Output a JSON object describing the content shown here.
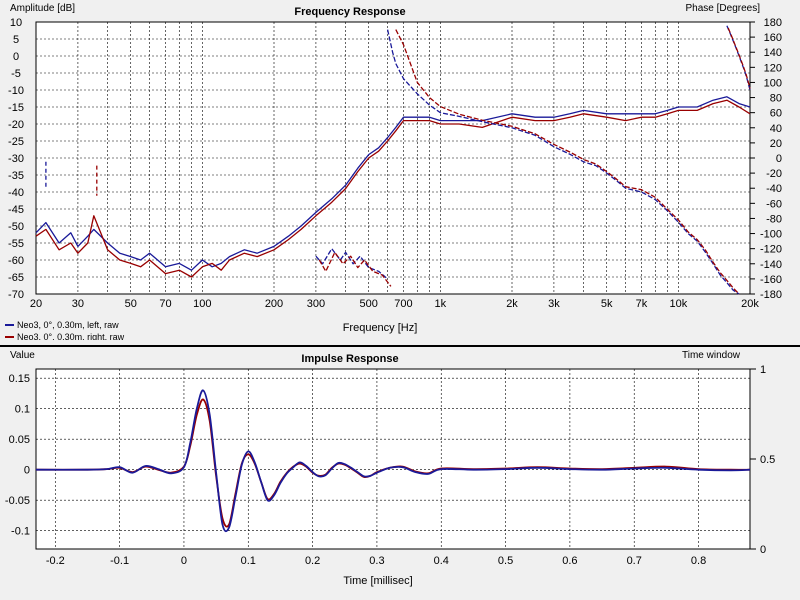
{
  "chart_data": [
    {
      "type": "line",
      "title": "Frequency Response",
      "xlabel": "Frequency [Hz]",
      "ylabel": "Amplitude [dB]",
      "y2label": "Phase [Degrees]",
      "xscale": "log",
      "xlim": [
        20,
        20000
      ],
      "ylim": [
        -70,
        10
      ],
      "y2lim": [
        -180,
        180
      ],
      "grid": true,
      "legend_position": "bottom-left",
      "xticks": [
        {
          "v": 20,
          "label": "20"
        },
        {
          "v": 30,
          "label": "30"
        },
        {
          "v": 50,
          "label": "50"
        },
        {
          "v": 70,
          "label": "70"
        },
        {
          "v": 100,
          "label": "100"
        },
        {
          "v": 200,
          "label": "200"
        },
        {
          "v": 300,
          "label": "300"
        },
        {
          "v": 500,
          "label": "500"
        },
        {
          "v": 700,
          "label": "700"
        },
        {
          "v": 1000,
          "label": "1k"
        },
        {
          "v": 2000,
          "label": "2k"
        },
        {
          "v": 3000,
          "label": "3k"
        },
        {
          "v": 5000,
          "label": "5k"
        },
        {
          "v": 7000,
          "label": "7k"
        },
        {
          "v": 10000,
          "label": "10k"
        },
        {
          "v": 20000,
          "label": "20k"
        }
      ],
      "yticks": [
        10,
        5,
        0,
        -5,
        -10,
        -15,
        -20,
        -25,
        -30,
        -35,
        -40,
        -45,
        -50,
        -55,
        -60,
        -65,
        -70
      ],
      "y2ticks": [
        180,
        160,
        140,
        120,
        100,
        80,
        60,
        40,
        20,
        0,
        -20,
        -40,
        -60,
        -80,
        -100,
        -120,
        -140,
        -160,
        -180
      ],
      "series": [
        {
          "name": "Neo3, 0°, 0.30m, left, raw",
          "color": "#1a1a99",
          "kind": "amplitude",
          "x": [
            20,
            22,
            25,
            28,
            30,
            33,
            35,
            40,
            45,
            50,
            55,
            60,
            70,
            80,
            90,
            100,
            110,
            120,
            130,
            150,
            170,
            200,
            230,
            260,
            300,
            350,
            400,
            450,
            500,
            550,
            600,
            650,
            700,
            800,
            900,
            1000,
            1200,
            1500,
            2000,
            2500,
            3000,
            3500,
            4000,
            5000,
            6000,
            7000,
            8000,
            9000,
            10000,
            11000,
            12000,
            14000,
            16000,
            18000,
            20000
          ],
          "y": [
            -52,
            -49,
            -55,
            -52,
            -56,
            -53,
            -51,
            -55,
            -58,
            -59,
            -60,
            -58,
            -62,
            -61,
            -63,
            -60,
            -62,
            -61,
            -59,
            -57,
            -58,
            -56,
            -53,
            -50,
            -46,
            -42,
            -38,
            -33,
            -29,
            -27,
            -24,
            -21,
            -18,
            -18,
            -18,
            -19,
            -19,
            -19,
            -17,
            -18,
            -18,
            -17,
            -16,
            -17,
            -17,
            -17,
            -17,
            -16,
            -15,
            -15,
            -15,
            -13,
            -12,
            -14,
            -15
          ]
        },
        {
          "name": "Neo3, 0°, 0.30m, right, raw",
          "color": "#990000",
          "kind": "amplitude",
          "x": [
            20,
            22,
            25,
            28,
            30,
            33,
            35,
            40,
            45,
            50,
            55,
            60,
            70,
            80,
            90,
            100,
            110,
            120,
            130,
            150,
            170,
            200,
            230,
            260,
            300,
            350,
            400,
            450,
            500,
            550,
            600,
            650,
            700,
            800,
            900,
            1000,
            1200,
            1500,
            2000,
            2500,
            3000,
            3500,
            4000,
            5000,
            6000,
            7000,
            8000,
            9000,
            10000,
            11000,
            12000,
            14000,
            16000,
            18000,
            20000
          ],
          "y": [
            -53,
            -51,
            -57,
            -55,
            -58,
            -55,
            -47,
            -57,
            -60,
            -61,
            -62,
            -60,
            -64,
            -63,
            -65,
            -62,
            -61,
            -63,
            -60,
            -58,
            -59,
            -57,
            -54,
            -51,
            -47,
            -43,
            -39,
            -34,
            -30,
            -28,
            -25,
            -22,
            -19,
            -19,
            -19,
            -20,
            -20,
            -21,
            -18,
            -19,
            -19,
            -18,
            -17,
            -18,
            -19,
            -18,
            -18,
            -17,
            -16,
            -16,
            -16,
            -14,
            -13,
            -15,
            -17
          ]
        },
        {
          "name": "",
          "color": "#1a1a99",
          "kind": "phase",
          "x": [
            600,
            630,
            650,
            700,
            800,
            900,
            1000,
            1200,
            1500,
            2000,
            2500,
            3000,
            3500,
            4000,
            4500,
            5000,
            5500,
            6000,
            7000,
            8000,
            9000,
            10000,
            11000,
            12000,
            13000,
            14000,
            15000,
            16000,
            17000,
            18000
          ],
          "y": [
            170,
            140,
            125,
            105,
            85,
            70,
            60,
            55,
            48,
            40,
            30,
            15,
            5,
            -5,
            -10,
            -20,
            -30,
            -40,
            -45,
            -55,
            -70,
            -85,
            -100,
            -110,
            -125,
            -140,
            -155,
            -165,
            -175,
            -180
          ]
        },
        {
          "name": "",
          "color": "#990000",
          "kind": "phase",
          "x": [
            650,
            700,
            800,
            900,
            1000,
            1200,
            1500,
            2000,
            2500,
            3000,
            3500,
            4000,
            4500,
            5000,
            5500,
            6000,
            7000,
            8000,
            9000,
            10000,
            11000,
            12000,
            13000,
            14000,
            15000,
            16000,
            17000,
            18000
          ],
          "y": [
            170,
            150,
            100,
            80,
            68,
            58,
            50,
            42,
            32,
            18,
            8,
            -2,
            -8,
            -18,
            -28,
            -38,
            -42,
            -52,
            -68,
            -82,
            -98,
            -108,
            -122,
            -138,
            -152,
            -162,
            -172,
            -180
          ]
        },
        {
          "name": "",
          "color": "#1a1a99",
          "kind": "phase",
          "x": [
            16000,
            16500,
            17000,
            17500,
            18000,
            18500,
            19000,
            19500,
            20000
          ],
          "y": [
            175,
            165,
            155,
            145,
            135,
            125,
            115,
            103,
            90
          ]
        },
        {
          "name": "",
          "color": "#990000",
          "kind": "phase",
          "x": [
            16200,
            16700,
            17200,
            17700,
            18200,
            18700,
            19200,
            19700,
            20000
          ],
          "y": [
            172,
            162,
            152,
            142,
            132,
            122,
            112,
            100,
            92
          ]
        },
        {
          "name": "",
          "color": "#1a1a99",
          "kind": "phase",
          "x": [
            300,
            320,
            350,
            380,
            400,
            430,
            460,
            500,
            550,
            600
          ],
          "y": [
            -130,
            -140,
            -120,
            -135,
            -125,
            -140,
            -130,
            -145,
            -150,
            -160
          ]
        },
        {
          "name": "",
          "color": "#990000",
          "kind": "phase",
          "x": [
            310,
            330,
            360,
            390,
            420,
            450,
            480,
            520,
            570,
            620
          ],
          "y": [
            -135,
            -150,
            -125,
            -140,
            -130,
            -145,
            -135,
            -150,
            -155,
            -170
          ]
        },
        {
          "name": "",
          "color": "#1a1a99",
          "kind": "phase-dash",
          "x": [
            22,
            22
          ],
          "y": [
            -5,
            -40
          ]
        },
        {
          "name": "",
          "color": "#990000",
          "kind": "phase-dash",
          "x": [
            36,
            36
          ],
          "y": [
            -10,
            -50
          ]
        }
      ]
    },
    {
      "type": "line",
      "title": "Impulse Response",
      "xlabel": "Time [millisec]",
      "ylabel": "Value",
      "y2label": "Time window",
      "xlim": [
        -0.23,
        0.88
      ],
      "ylim": [
        -0.13,
        0.165
      ],
      "y2lim": [
        0,
        1
      ],
      "grid": true,
      "xticks": [
        -0.2,
        -0.1,
        0,
        0.1,
        0.2,
        0.3,
        0.4,
        0.5,
        0.6,
        0.7,
        0.8
      ],
      "xtick_labels": [
        "-0.2",
        "-0.1",
        "0",
        "0.1",
        "0.2",
        "0.3",
        "0.4",
        "0.5",
        "0.6",
        "0.7",
        "0.8"
      ],
      "yticks": [
        0.15,
        0.1,
        0.05,
        0,
        -0.05,
        -0.1
      ],
      "ytick_labels": [
        "0.15",
        "0.1",
        "0.05",
        "0",
        "-0.05",
        "-0.1"
      ],
      "y2ticks": [
        1,
        0.5,
        0
      ],
      "y2tick_labels": [
        "1",
        "0.5",
        "0"
      ],
      "series": [
        {
          "name": "left",
          "color": "#990000",
          "x": [
            -0.23,
            -0.15,
            -0.12,
            -0.1,
            -0.08,
            -0.06,
            -0.04,
            -0.02,
            0,
            0.01,
            0.02,
            0.03,
            0.04,
            0.05,
            0.06,
            0.07,
            0.08,
            0.09,
            0.1,
            0.11,
            0.12,
            0.13,
            0.14,
            0.15,
            0.16,
            0.17,
            0.18,
            0.19,
            0.2,
            0.21,
            0.22,
            0.23,
            0.24,
            0.25,
            0.26,
            0.27,
            0.28,
            0.29,
            0.3,
            0.32,
            0.34,
            0.36,
            0.38,
            0.4,
            0.45,
            0.5,
            0.55,
            0.6,
            0.65,
            0.7,
            0.75,
            0.8,
            0.85,
            0.88
          ],
          "y": [
            0,
            0,
            0.001,
            0.003,
            -0.004,
            0.005,
            0.0,
            -0.005,
            0.005,
            0.04,
            0.09,
            0.115,
            0.08,
            -0.01,
            -0.08,
            -0.09,
            -0.04,
            0.01,
            0.025,
            0.01,
            -0.02,
            -0.048,
            -0.04,
            -0.02,
            -0.005,
            0.005,
            0.01,
            0.005,
            -0.005,
            -0.01,
            -0.008,
            0.003,
            0.01,
            0.008,
            0.002,
            -0.005,
            -0.012,
            -0.01,
            -0.004,
            0.003,
            0.005,
            -0.003,
            -0.006,
            0.002,
            0.001,
            0.002,
            0.004,
            0.002,
            0.001,
            0.003,
            0.005,
            0.001,
            0.0,
            0.0
          ]
        },
        {
          "name": "right",
          "color": "#1a1a99",
          "x": [
            -0.23,
            -0.15,
            -0.12,
            -0.1,
            -0.08,
            -0.06,
            -0.04,
            -0.02,
            0,
            0.01,
            0.02,
            0.03,
            0.04,
            0.05,
            0.06,
            0.07,
            0.08,
            0.09,
            0.1,
            0.11,
            0.12,
            0.13,
            0.14,
            0.15,
            0.16,
            0.17,
            0.18,
            0.19,
            0.2,
            0.21,
            0.22,
            0.23,
            0.24,
            0.25,
            0.26,
            0.27,
            0.28,
            0.29,
            0.3,
            0.32,
            0.34,
            0.36,
            0.38,
            0.4,
            0.45,
            0.5,
            0.55,
            0.6,
            0.65,
            0.7,
            0.75,
            0.8,
            0.85,
            0.88
          ],
          "y": [
            0,
            0,
            0.001,
            0.004,
            -0.005,
            0.006,
            0.001,
            -0.006,
            0.004,
            0.045,
            0.1,
            0.13,
            0.09,
            -0.005,
            -0.09,
            -0.095,
            -0.045,
            0.008,
            0.03,
            0.012,
            -0.02,
            -0.05,
            -0.042,
            -0.022,
            -0.006,
            0.004,
            0.012,
            0.006,
            -0.004,
            -0.011,
            -0.009,
            0.002,
            0.011,
            0.009,
            0.003,
            -0.004,
            -0.011,
            -0.01,
            -0.005,
            0.003,
            0.004,
            -0.004,
            -0.007,
            0.001,
            0.0,
            0.001,
            0.003,
            0.001,
            0.0,
            0.002,
            0.003,
            0.0,
            -0.001,
            0.0
          ]
        }
      ]
    }
  ],
  "legend": [
    {
      "label": "Neo3, 0°, 0.30m, left, raw",
      "color": "#1a1a99"
    },
    {
      "label": "Neo3, 0°, 0.30m, right, raw",
      "color": "#990000"
    }
  ]
}
